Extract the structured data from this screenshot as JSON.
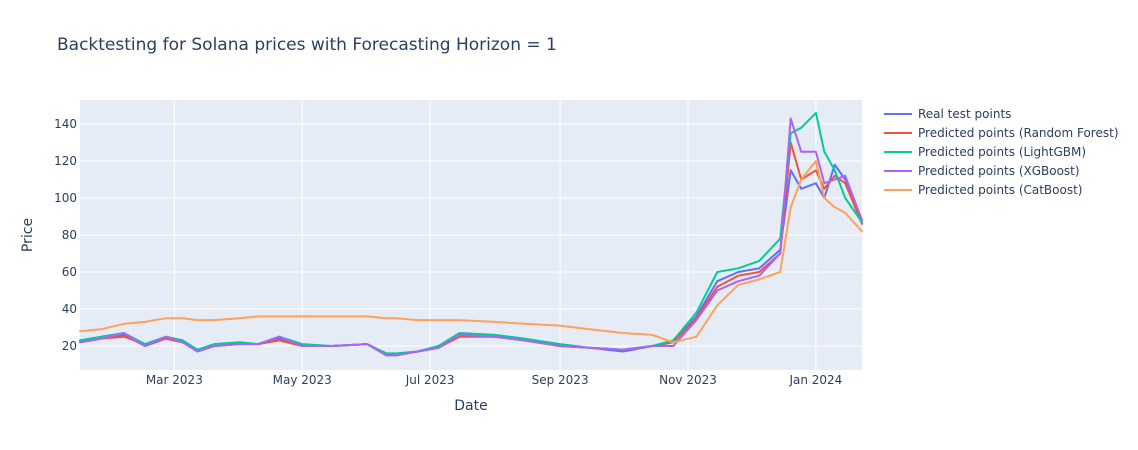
{
  "chart_data": {
    "type": "line",
    "title": "Backtesting for Solana prices with Forecasting Horizon = 1",
    "xlabel": "Date",
    "ylabel": "Price",
    "xlim": [
      "2023-01-15",
      "2024-01-23"
    ],
    "ylim": [
      7,
      153
    ],
    "x_ticks": [
      {
        "date": "2023-03-01",
        "label": "Mar 2023"
      },
      {
        "date": "2023-05-01",
        "label": "May 2023"
      },
      {
        "date": "2023-07-01",
        "label": "Jul 2023"
      },
      {
        "date": "2023-09-01",
        "label": "Sep 2023"
      },
      {
        "date": "2023-11-01",
        "label": "Nov 2023"
      },
      {
        "date": "2024-01-01",
        "label": "Jan 2024"
      }
    ],
    "y_ticks": [
      20,
      40,
      60,
      80,
      100,
      120,
      140
    ],
    "grid": true,
    "legend_position": "right",
    "colors": {
      "plot_bg": "#e5ecf6",
      "text": "#2a3f5f"
    },
    "series": [
      {
        "name": "Real test points",
        "color": "#636efa",
        "x": [
          "2023-01-15",
          "2023-01-25",
          "2023-02-05",
          "2023-02-15",
          "2023-02-25",
          "2023-03-05",
          "2023-03-12",
          "2023-03-20",
          "2023-04-01",
          "2023-04-10",
          "2023-04-20",
          "2023-05-01",
          "2023-05-15",
          "2023-06-01",
          "2023-06-10",
          "2023-06-15",
          "2023-06-25",
          "2023-07-05",
          "2023-07-15",
          "2023-08-01",
          "2023-08-15",
          "2023-09-01",
          "2023-09-15",
          "2023-10-01",
          "2023-10-15",
          "2023-10-25",
          "2023-11-05",
          "2023-11-15",
          "2023-11-25",
          "2023-12-05",
          "2023-12-15",
          "2023-12-20",
          "2023-12-25",
          "2024-01-01",
          "2024-01-05",
          "2024-01-10",
          "2024-01-15",
          "2024-01-23"
        ],
        "values": [
          22,
          24,
          26,
          20,
          24,
          22,
          17,
          20,
          21,
          21,
          24,
          20,
          20,
          21,
          15,
          15,
          17,
          19,
          26,
          25,
          23,
          20,
          19,
          17,
          20,
          22,
          36,
          55,
          60,
          62,
          72,
          115,
          105,
          108,
          100,
          118,
          110,
          88
        ]
      },
      {
        "name": "Predicted points (Random Forest)",
        "color": "#ef553b",
        "x": [
          "2023-01-15",
          "2023-01-25",
          "2023-02-05",
          "2023-02-15",
          "2023-02-25",
          "2023-03-05",
          "2023-03-12",
          "2023-03-20",
          "2023-04-01",
          "2023-04-10",
          "2023-04-20",
          "2023-05-01",
          "2023-05-15",
          "2023-06-01",
          "2023-06-10",
          "2023-06-15",
          "2023-06-25",
          "2023-07-05",
          "2023-07-15",
          "2023-08-01",
          "2023-08-15",
          "2023-09-01",
          "2023-09-15",
          "2023-10-01",
          "2023-10-15",
          "2023-10-25",
          "2023-11-05",
          "2023-11-15",
          "2023-11-25",
          "2023-12-05",
          "2023-12-15",
          "2023-12-20",
          "2023-12-25",
          "2024-01-01",
          "2024-01-05",
          "2024-01-10",
          "2024-01-15",
          "2024-01-23"
        ],
        "values": [
          22,
          24,
          25,
          21,
          24,
          22,
          18,
          20,
          21,
          21,
          23,
          20,
          20,
          21,
          16,
          15,
          17,
          19,
          25,
          25,
          23,
          20,
          19,
          18,
          20,
          22,
          35,
          52,
          58,
          60,
          70,
          130,
          110,
          115,
          105,
          112,
          108,
          86
        ]
      },
      {
        "name": "Predicted points (LightGBM)",
        "color": "#00cc96",
        "x": [
          "2023-01-15",
          "2023-01-25",
          "2023-02-05",
          "2023-02-15",
          "2023-02-25",
          "2023-03-05",
          "2023-03-12",
          "2023-03-20",
          "2023-04-01",
          "2023-04-10",
          "2023-04-20",
          "2023-05-01",
          "2023-05-15",
          "2023-06-01",
          "2023-06-10",
          "2023-06-15",
          "2023-06-25",
          "2023-07-05",
          "2023-07-15",
          "2023-08-01",
          "2023-08-15",
          "2023-09-01",
          "2023-09-15",
          "2023-10-01",
          "2023-10-15",
          "2023-10-25",
          "2023-11-05",
          "2023-11-15",
          "2023-11-25",
          "2023-12-05",
          "2023-12-15",
          "2023-12-20",
          "2023-12-25",
          "2024-01-01",
          "2024-01-05",
          "2024-01-10",
          "2024-01-15",
          "2024-01-23"
        ],
        "values": [
          23,
          25,
          27,
          21,
          25,
          23,
          18,
          21,
          22,
          21,
          25,
          21,
          20,
          21,
          16,
          16,
          17,
          20,
          27,
          26,
          24,
          21,
          19,
          18,
          20,
          23,
          38,
          60,
          62,
          66,
          78,
          135,
          138,
          146,
          125,
          115,
          100,
          87
        ]
      },
      {
        "name": "Predicted points (XGBoost)",
        "color": "#ab63fa",
        "x": [
          "2023-01-15",
          "2023-01-25",
          "2023-02-05",
          "2023-02-15",
          "2023-02-25",
          "2023-03-05",
          "2023-03-12",
          "2023-03-20",
          "2023-04-01",
          "2023-04-10",
          "2023-04-20",
          "2023-05-01",
          "2023-05-15",
          "2023-06-01",
          "2023-06-10",
          "2023-06-15",
          "2023-06-25",
          "2023-07-05",
          "2023-07-15",
          "2023-08-01",
          "2023-08-15",
          "2023-09-01",
          "2023-09-15",
          "2023-10-01",
          "2023-10-15",
          "2023-10-25",
          "2023-11-05",
          "2023-11-15",
          "2023-11-25",
          "2023-12-05",
          "2023-12-15",
          "2023-12-20",
          "2023-12-25",
          "2024-01-01",
          "2024-01-05",
          "2024-01-10",
          "2024-01-15",
          "2024-01-23"
        ],
        "values": [
          22,
          24,
          27,
          20,
          25,
          22,
          17,
          20,
          21,
          21,
          25,
          20,
          20,
          21,
          15,
          15,
          17,
          19,
          26,
          25,
          23,
          20,
          19,
          18,
          20,
          20,
          34,
          50,
          55,
          58,
          70,
          143,
          125,
          125,
          108,
          110,
          112,
          88
        ]
      },
      {
        "name": "Predicted points (CatBoost)",
        "color": "#ffa15a",
        "x": [
          "2023-01-15",
          "2023-01-25",
          "2023-02-05",
          "2023-02-15",
          "2023-02-25",
          "2023-03-05",
          "2023-03-12",
          "2023-03-20",
          "2023-04-01",
          "2023-04-10",
          "2023-04-20",
          "2023-05-01",
          "2023-05-15",
          "2023-06-01",
          "2023-06-10",
          "2023-06-15",
          "2023-06-25",
          "2023-07-05",
          "2023-07-15",
          "2023-08-01",
          "2023-08-15",
          "2023-09-01",
          "2023-09-15",
          "2023-10-01",
          "2023-10-15",
          "2023-10-25",
          "2023-11-05",
          "2023-11-15",
          "2023-11-25",
          "2023-12-05",
          "2023-12-15",
          "2023-12-20",
          "2023-12-25",
          "2024-01-01",
          "2024-01-05",
          "2024-01-10",
          "2024-01-15",
          "2024-01-23"
        ],
        "values": [
          28,
          29,
          32,
          33,
          35,
          35,
          34,
          34,
          35,
          36,
          36,
          36,
          36,
          36,
          35,
          35,
          34,
          34,
          34,
          33,
          32,
          31,
          29,
          27,
          26,
          22,
          25,
          42,
          53,
          56,
          60,
          95,
          110,
          120,
          100,
          95,
          92,
          82
        ]
      }
    ]
  }
}
